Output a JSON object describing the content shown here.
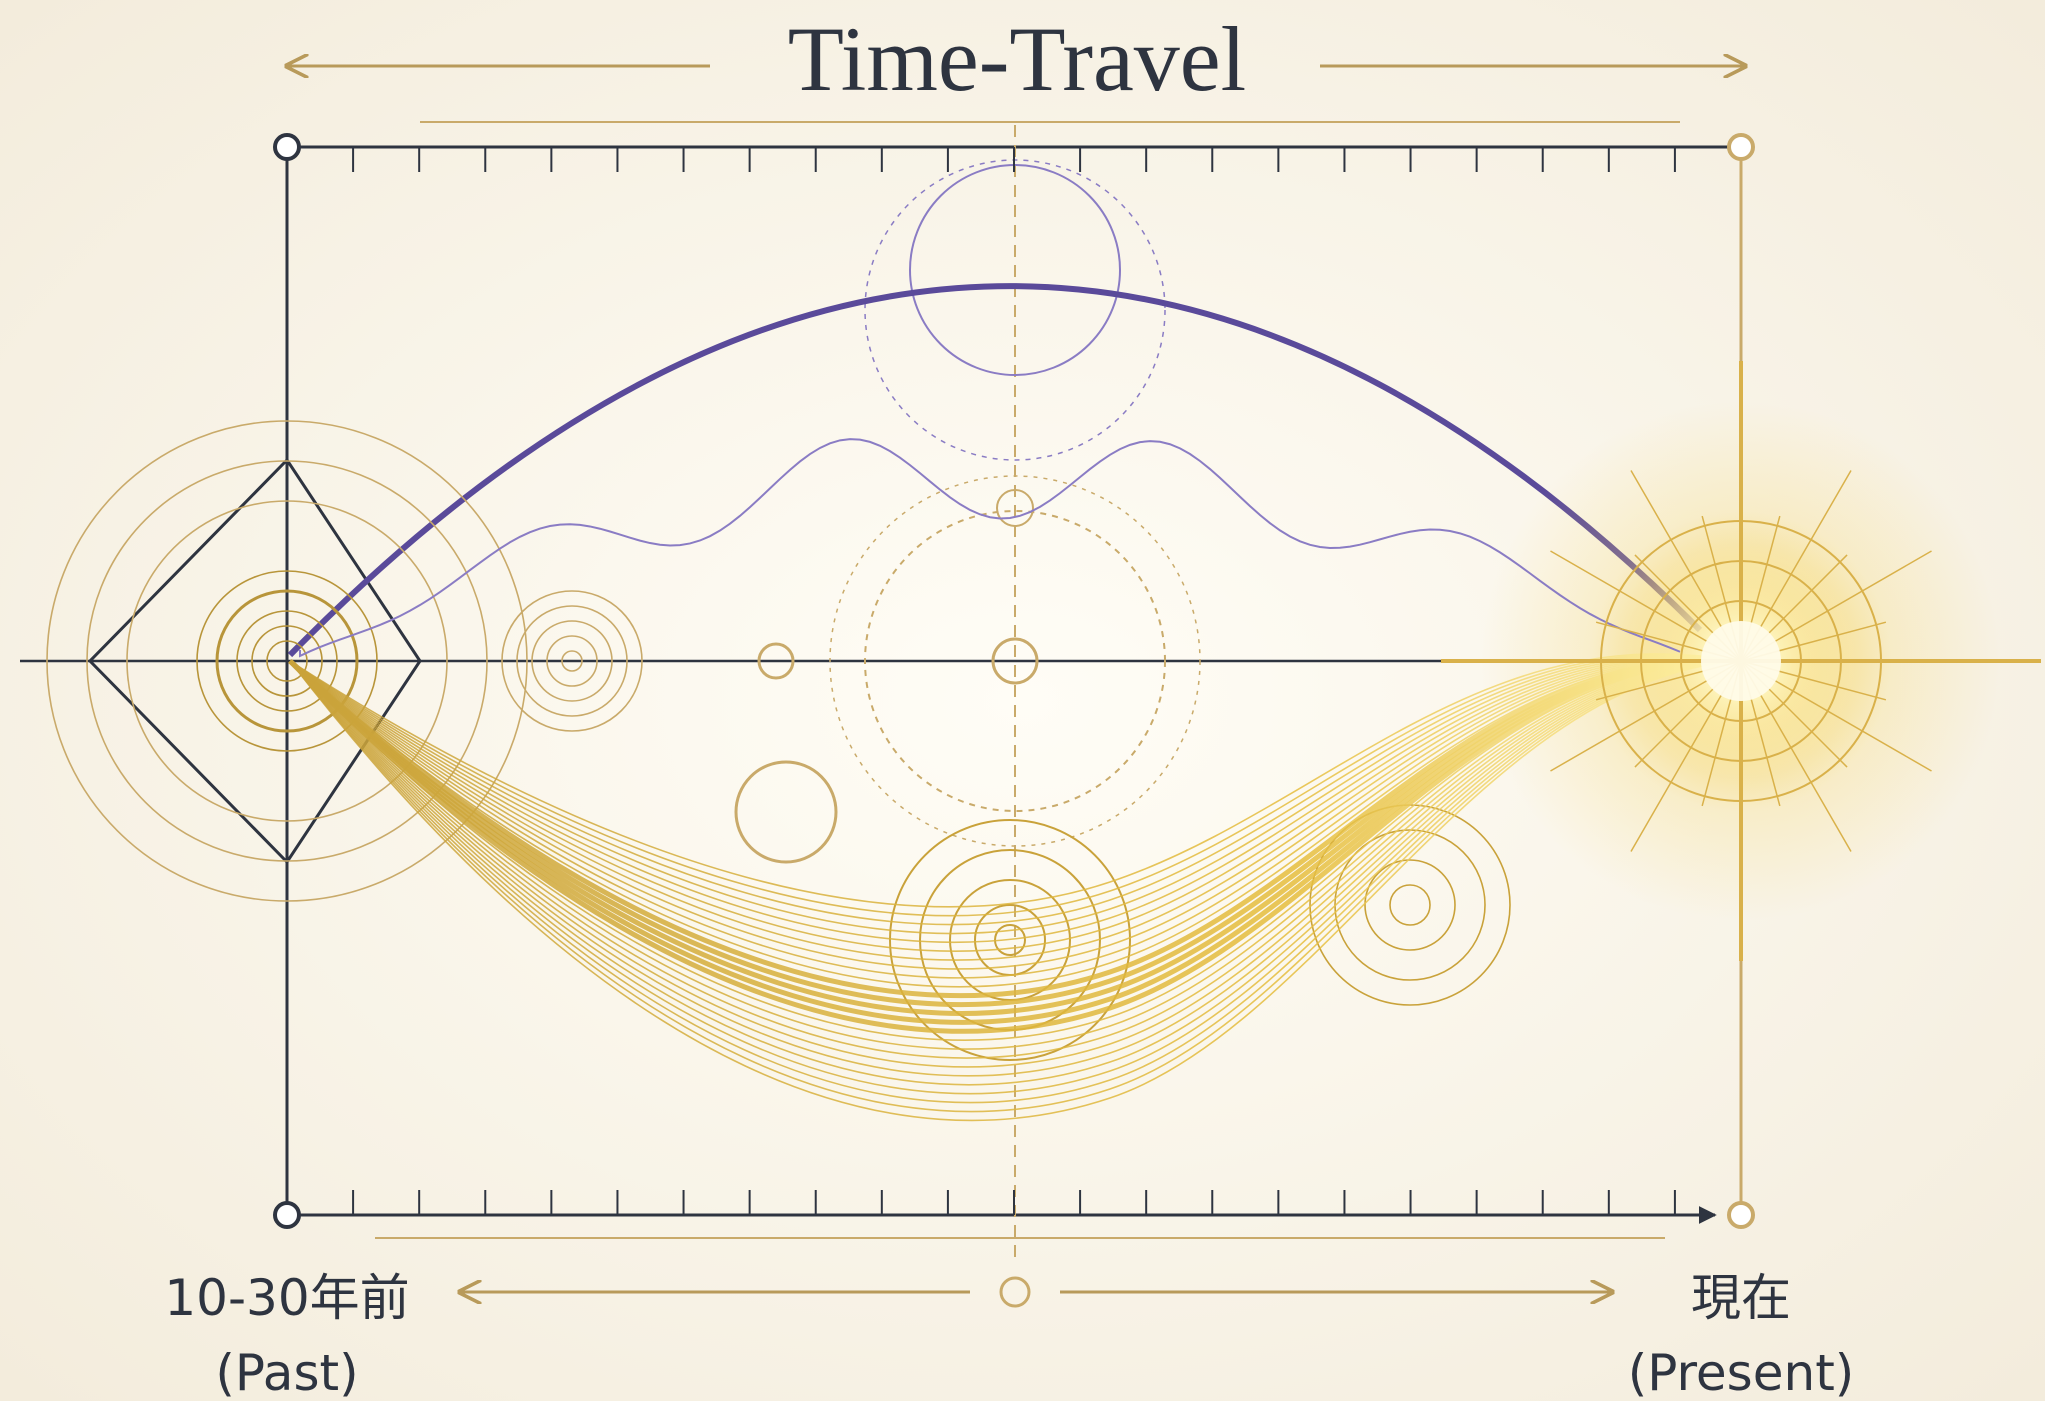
{
  "header": {
    "title": "Time-Travel"
  },
  "labels": {
    "past": {
      "line1": "10-30年前",
      "line2": "(Past)"
    },
    "present": {
      "line1": "現在",
      "line2": "(Present)"
    }
  }
}
